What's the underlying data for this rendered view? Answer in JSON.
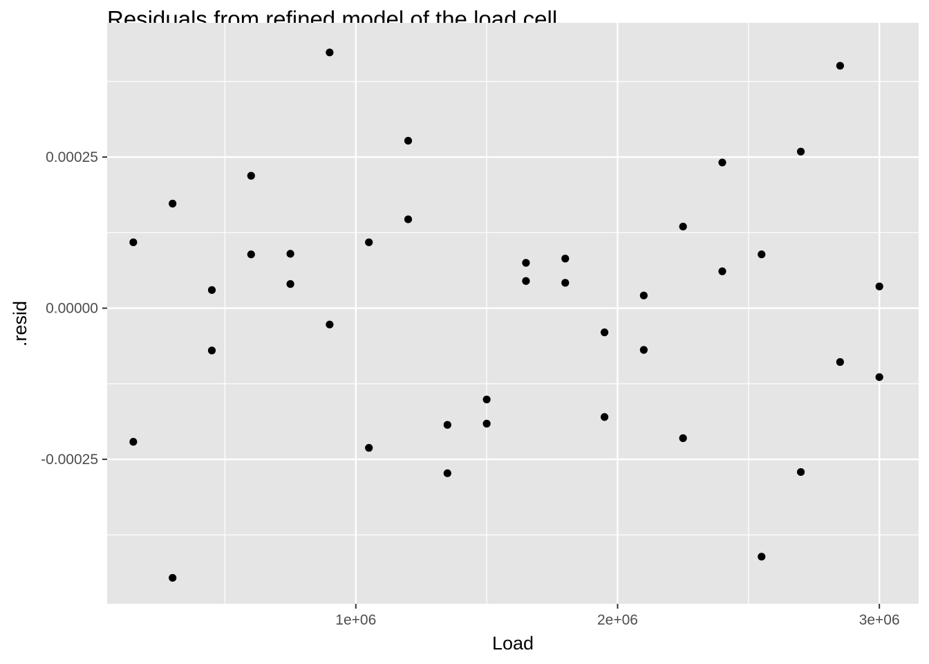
{
  "chart_data": {
    "type": "scatter",
    "title": "Residuals from refined model of the load cell",
    "xlabel": "Load",
    "ylabel": ".resid",
    "xlim": [
      50000,
      3150000
    ],
    "ylim": [
      -0.000489,
      0.000472
    ],
    "x_ticks": [
      {
        "value": 1000000,
        "label": "1e+06"
      },
      {
        "value": 2000000,
        "label": "2e+06"
      },
      {
        "value": 3000000,
        "label": "3e+06"
      }
    ],
    "x_minor_ticks": [
      500000,
      1500000,
      2500000
    ],
    "y_ticks": [
      {
        "value": -0.00025,
        "label": "-0.00025"
      },
      {
        "value": 0,
        "label": "0.00000"
      },
      {
        "value": 0.00025,
        "label": "0.00025"
      }
    ],
    "y_minor_ticks": [
      -0.000375,
      -0.000125,
      0.000125,
      0.000375
    ],
    "grid": true,
    "panel_background": "#e5e5e5",
    "grid_color": "#ffffff",
    "point_color": "#000000",
    "points": [
      {
        "x": 150000,
        "y": 0.000109
      },
      {
        "x": 150000,
        "y": -0.000221
      },
      {
        "x": 300000,
        "y": 0.000173
      },
      {
        "x": 300000,
        "y": -0.000446
      },
      {
        "x": 450000,
        "y": 3e-05
      },
      {
        "x": 450000,
        "y": -7e-05
      },
      {
        "x": 600000,
        "y": 0.000219
      },
      {
        "x": 600000,
        "y": 8.9e-05
      },
      {
        "x": 750000,
        "y": 9e-05
      },
      {
        "x": 750000,
        "y": 4e-05
      },
      {
        "x": 900000,
        "y": 0.000423
      },
      {
        "x": 900000,
        "y": -2.7e-05
      },
      {
        "x": 1050000,
        "y": 0.000109
      },
      {
        "x": 1050000,
        "y": -0.000231
      },
      {
        "x": 1200000,
        "y": 0.000277
      },
      {
        "x": 1200000,
        "y": 0.000147
      },
      {
        "x": 1350000,
        "y": -0.000193
      },
      {
        "x": 1350000,
        "y": -0.000273
      },
      {
        "x": 1500000,
        "y": -0.000151
      },
      {
        "x": 1500000,
        "y": -0.000191
      },
      {
        "x": 1650000,
        "y": 7.5e-05
      },
      {
        "x": 1650000,
        "y": 4.5e-05
      },
      {
        "x": 1800000,
        "y": 8.2e-05
      },
      {
        "x": 1800000,
        "y": 4.2e-05
      },
      {
        "x": 1950000,
        "y": -4e-05
      },
      {
        "x": 1950000,
        "y": -0.00018
      },
      {
        "x": 2100000,
        "y": 2.1e-05
      },
      {
        "x": 2100000,
        "y": -6.9e-05
      },
      {
        "x": 2250000,
        "y": 0.000135
      },
      {
        "x": 2250000,
        "y": -0.000215
      },
      {
        "x": 2400000,
        "y": 0.000241
      },
      {
        "x": 2400000,
        "y": 6.1e-05
      },
      {
        "x": 2550000,
        "y": 8.9e-05
      },
      {
        "x": 2550000,
        "y": -0.000411
      },
      {
        "x": 2700000,
        "y": 0.000259
      },
      {
        "x": 2700000,
        "y": -0.000271
      },
      {
        "x": 2850000,
        "y": 0.000401
      },
      {
        "x": 2850000,
        "y": -8.9e-05
      },
      {
        "x": 3000000,
        "y": 3.6e-05
      },
      {
        "x": 3000000,
        "y": -0.000114
      }
    ]
  }
}
